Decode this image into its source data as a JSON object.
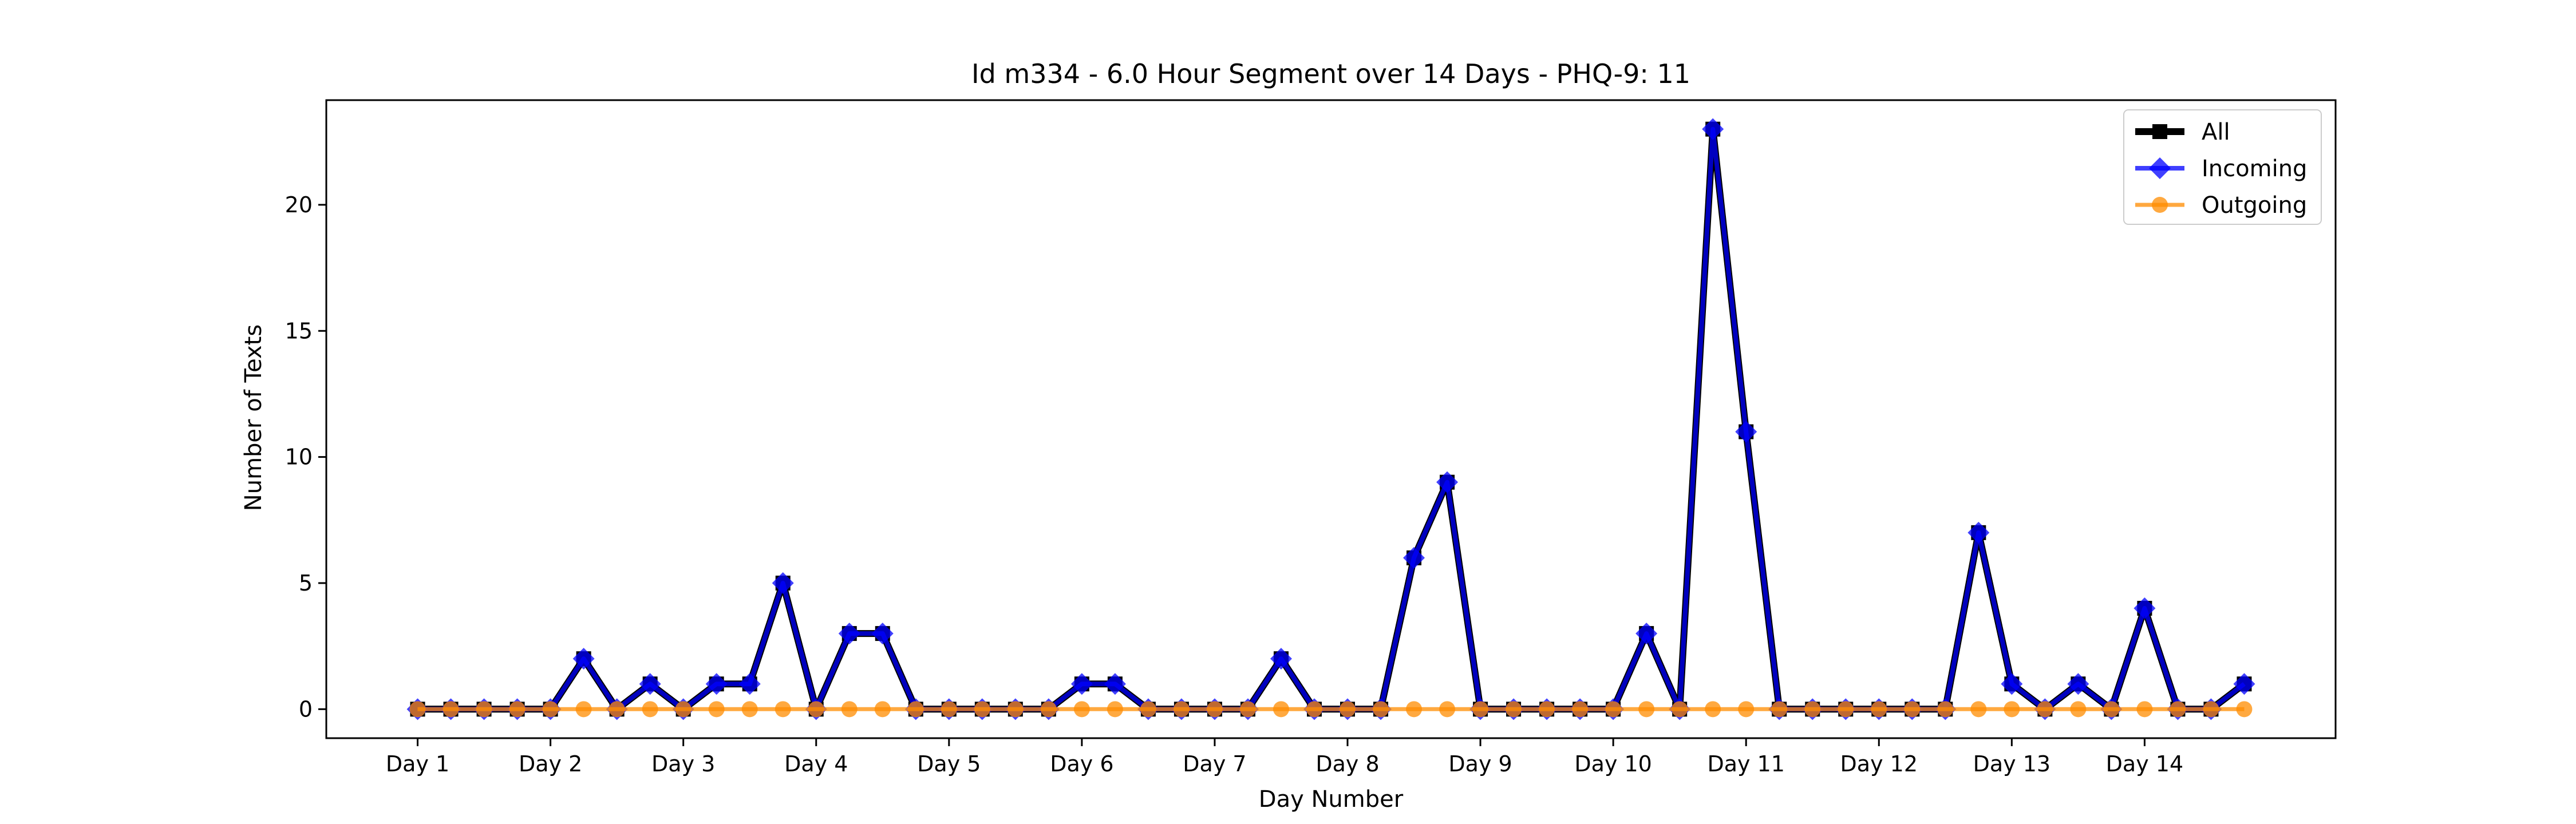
{
  "chart_data": {
    "type": "line",
    "title": "Id m334 - 6.0 Hour Segment over 14 Days - PHQ-9: 11",
    "xlabel": "Day Number",
    "ylabel": "Number of Texts",
    "ylim": [
      -1.15,
      24.15
    ],
    "xlim": [
      -2.75,
      57.75
    ],
    "yticks": [
      0,
      5,
      10,
      15,
      20
    ],
    "xtick_positions": [
      0,
      4,
      8,
      12,
      16,
      20,
      24,
      28,
      32,
      36,
      40,
      44,
      48,
      52
    ],
    "xtick_labels": [
      "Day 1",
      "Day 2",
      "Day 3",
      "Day 4",
      "Day 5",
      "Day 6",
      "Day 7",
      "Day 8",
      "Day 9",
      "Day 10",
      "Day 11",
      "Day 12",
      "Day 13",
      "Day 14"
    ],
    "grid": false,
    "legend_position": "top-right",
    "x": [
      0,
      1,
      2,
      3,
      4,
      5,
      6,
      7,
      8,
      9,
      10,
      11,
      12,
      13,
      14,
      15,
      16,
      17,
      18,
      19,
      20,
      21,
      22,
      23,
      24,
      25,
      26,
      27,
      28,
      29,
      30,
      31,
      32,
      33,
      34,
      35,
      36,
      37,
      38,
      39,
      40,
      41,
      42,
      43,
      44,
      45,
      46,
      47,
      48,
      49,
      50,
      51,
      52,
      53,
      54,
      55
    ],
    "series": [
      {
        "name": "All",
        "color": "#000000",
        "marker": "square",
        "values": [
          0,
          0,
          0,
          0,
          0,
          2,
          0,
          1,
          0,
          1,
          1,
          5,
          0,
          3,
          3,
          0,
          0,
          0,
          0,
          0,
          1,
          1,
          0,
          0,
          0,
          0,
          2,
          0,
          0,
          0,
          6,
          9,
          0,
          0,
          0,
          0,
          0,
          3,
          0,
          23,
          11,
          0,
          0,
          0,
          0,
          0,
          0,
          7,
          1,
          0,
          1,
          0,
          4,
          0,
          0,
          1
        ]
      },
      {
        "name": "Incoming",
        "color": "#0000ff",
        "marker": "diamond",
        "values": [
          0,
          0,
          0,
          0,
          0,
          2,
          0,
          1,
          0,
          1,
          1,
          5,
          0,
          3,
          3,
          0,
          0,
          0,
          0,
          0,
          1,
          1,
          0,
          0,
          0,
          0,
          2,
          0,
          0,
          0,
          6,
          9,
          0,
          0,
          0,
          0,
          0,
          3,
          0,
          23,
          11,
          0,
          0,
          0,
          0,
          0,
          0,
          7,
          1,
          0,
          1,
          0,
          4,
          0,
          0,
          1
        ]
      },
      {
        "name": "Outgoing",
        "color": "#ff8c00",
        "marker": "circle",
        "values": [
          0,
          0,
          0,
          0,
          0,
          0,
          0,
          0,
          0,
          0,
          0,
          0,
          0,
          0,
          0,
          0,
          0,
          0,
          0,
          0,
          0,
          0,
          0,
          0,
          0,
          0,
          0,
          0,
          0,
          0,
          0,
          0,
          0,
          0,
          0,
          0,
          0,
          0,
          0,
          0,
          0,
          0,
          0,
          0,
          0,
          0,
          0,
          0,
          0,
          0,
          0,
          0,
          0,
          0,
          0,
          0
        ]
      }
    ]
  }
}
